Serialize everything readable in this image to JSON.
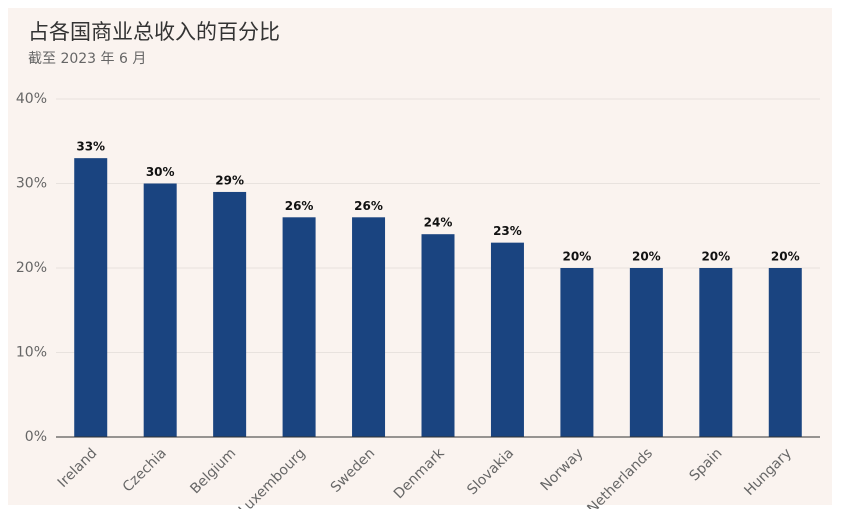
{
  "chart_data": {
    "type": "bar",
    "title": "占各国商业总收入的百分比",
    "subtitle": "截至 2023 年 6 月",
    "categories": [
      "Ireland",
      "Czechia",
      "Belgium",
      "Luxembourg",
      "Sweden",
      "Denmark",
      "Slovakia",
      "Norway",
      "Netherlands",
      "Spain",
      "Hungary"
    ],
    "values": [
      33,
      30,
      29,
      26,
      26,
      24,
      23,
      20,
      20,
      20,
      20
    ],
    "value_labels": [
      "33%",
      "30%",
      "29%",
      "26%",
      "26%",
      "24%",
      "23%",
      "20%",
      "20%",
      "20%",
      "20%"
    ],
    "color": "#1a4480",
    "ylim": [
      0,
      40
    ],
    "yticks": [
      {
        "value": 0,
        "label": "0%"
      },
      {
        "value": 10,
        "label": "10%"
      },
      {
        "value": 20,
        "label": "20%"
      },
      {
        "value": 30,
        "label": "30%"
      },
      {
        "value": 40,
        "label": "40%"
      }
    ],
    "grid": true
  }
}
